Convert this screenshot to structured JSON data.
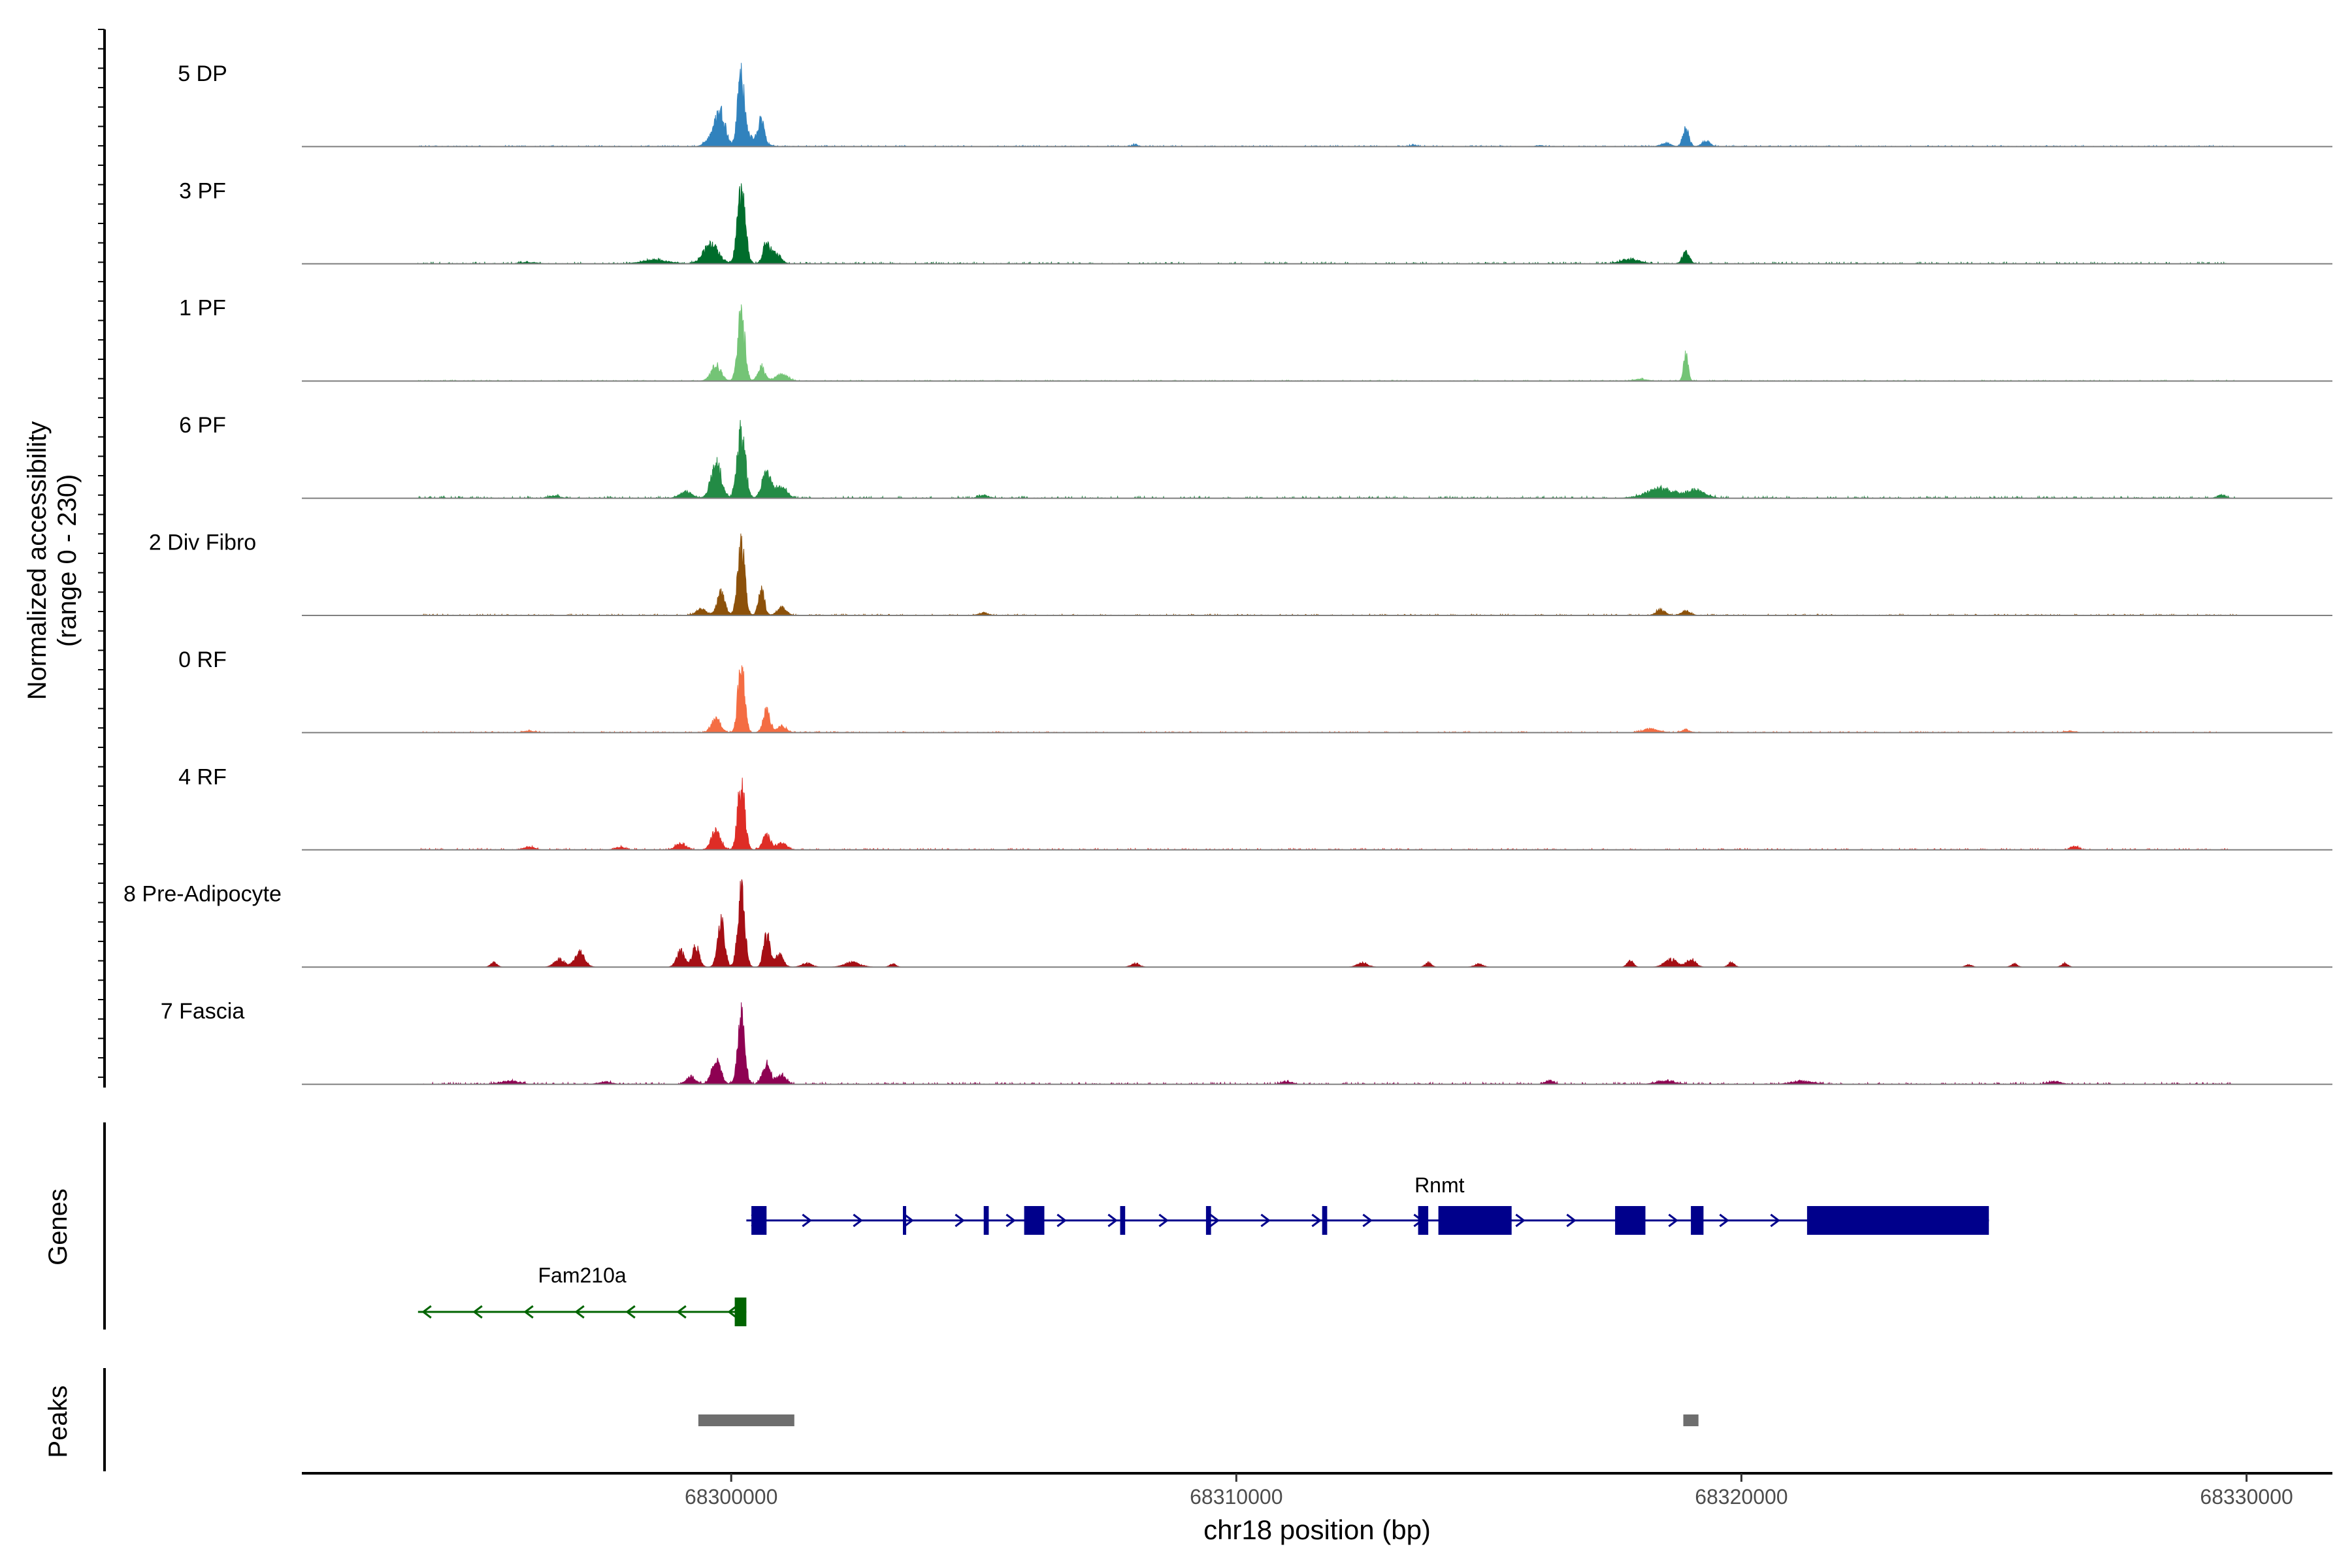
{
  "chart_data": {
    "type": "area",
    "title": "",
    "ylabel_line1": "Normalized accessibility",
    "ylabel_line2": "(range 0 - 230)",
    "y_range": [
      0,
      230
    ],
    "xlabel": "chr18 position (bp)",
    "x_range": [
      68291500,
      68331700
    ],
    "x_ticks": [
      {
        "value": 68300000,
        "label": "68300000"
      },
      {
        "value": 68310000,
        "label": "68310000"
      },
      {
        "value": 68320000,
        "label": "68320000"
      },
      {
        "value": 68330000,
        "label": "68330000"
      }
    ],
    "track_start": 68293800,
    "track_end": 68329800,
    "tracks": [
      {
        "name": "5 DP",
        "color": "#3182bd",
        "noise": 1.5,
        "side": 0.0,
        "peaks": [
          [
            68299800,
            100,
            90
          ],
          [
            68300200,
            230,
            70
          ],
          [
            68300600,
            70,
            50
          ],
          [
            68299650,
            40,
            120
          ],
          [
            68300500,
            30,
            150
          ],
          [
            68318500,
            12,
            90
          ],
          [
            68318900,
            55,
            60
          ],
          [
            68319300,
            18,
            80
          ],
          [
            68308000,
            6,
            60
          ],
          [
            68313500,
            5,
            60
          ],
          [
            68316000,
            4,
            60
          ]
        ]
      },
      {
        "name": "3 PF",
        "color": "#006d2c",
        "noise": 2.0,
        "side": 0.0,
        "peaks": [
          [
            68299600,
            60,
            150
          ],
          [
            68300200,
            220,
            80
          ],
          [
            68300700,
            70,
            70
          ],
          [
            68300900,
            30,
            90
          ],
          [
            68298500,
            12,
            250
          ],
          [
            68317800,
            15,
            180
          ],
          [
            68318900,
            35,
            70
          ],
          [
            68296000,
            4,
            150
          ]
        ]
      },
      {
        "name": "1 PF",
        "color": "#74c476",
        "noise": 1.2,
        "side": 0.0,
        "peaks": [
          [
            68299700,
            50,
            100
          ],
          [
            68300200,
            220,
            70
          ],
          [
            68300600,
            45,
            70
          ],
          [
            68301000,
            20,
            120
          ],
          [
            68318000,
            6,
            120
          ],
          [
            68318900,
            80,
            45
          ]
        ]
      },
      {
        "name": "6 PF",
        "color": "#238b45",
        "noise": 2.3,
        "side": 0.0,
        "peaks": [
          [
            68299100,
            20,
            120
          ],
          [
            68299700,
            110,
            100
          ],
          [
            68300200,
            210,
            80
          ],
          [
            68300700,
            80,
            90
          ],
          [
            68301000,
            40,
            100
          ],
          [
            68318400,
            30,
            280
          ],
          [
            68319100,
            25,
            180
          ],
          [
            68305000,
            9,
            100
          ],
          [
            68296500,
            8,
            100
          ],
          [
            68329500,
            10,
            80
          ]
        ]
      },
      {
        "name": "2 Div Fibro",
        "color": "#8c510a",
        "noise": 1.6,
        "side": 0.0,
        "peaks": [
          [
            68299800,
            70,
            80
          ],
          [
            68300200,
            225,
            70
          ],
          [
            68300600,
            80,
            60
          ],
          [
            68301000,
            25,
            90
          ],
          [
            68299400,
            20,
            100
          ],
          [
            68318400,
            18,
            90
          ],
          [
            68318900,
            14,
            90
          ],
          [
            68305000,
            8,
            90
          ]
        ]
      },
      {
        "name": "0 RF",
        "color": "#f46d43",
        "noise": 1.5,
        "side": 0.0,
        "peaks": [
          [
            68299700,
            45,
            90
          ],
          [
            68300200,
            220,
            65
          ],
          [
            68300700,
            70,
            70
          ],
          [
            68301000,
            20,
            90
          ],
          [
            68318200,
            12,
            150
          ],
          [
            68318900,
            10,
            70
          ],
          [
            68296000,
            5,
            100
          ],
          [
            68326500,
            5,
            100
          ]
        ]
      },
      {
        "name": "4 RF",
        "color": "#de2d26",
        "noise": 1.7,
        "side": 0.0,
        "peaks": [
          [
            68299000,
            20,
            100
          ],
          [
            68299700,
            60,
            90
          ],
          [
            68300200,
            215,
            70
          ],
          [
            68300700,
            45,
            80
          ],
          [
            68301000,
            20,
            100
          ],
          [
            68296000,
            10,
            100
          ],
          [
            68297800,
            8,
            100
          ],
          [
            68326600,
            12,
            70
          ]
        ]
      },
      {
        "name": "8 Pre-Adipocyte",
        "color": "#a50f15",
        "noise": 0.0,
        "side": 0.0,
        "peaks": [
          [
            68299300,
            65,
            70
          ],
          [
            68299800,
            140,
            70
          ],
          [
            68300200,
            230,
            70
          ],
          [
            68300700,
            110,
            60
          ],
          [
            68299000,
            50,
            80
          ],
          [
            68300950,
            40,
            80
          ],
          [
            68297000,
            45,
            100
          ],
          [
            68296600,
            25,
            100
          ],
          [
            68295300,
            15,
            60
          ],
          [
            68301500,
            12,
            100
          ],
          [
            68302400,
            15,
            150
          ],
          [
            68303200,
            10,
            60
          ],
          [
            68308000,
            12,
            80
          ],
          [
            68312500,
            14,
            100
          ],
          [
            68313800,
            14,
            60
          ],
          [
            68314800,
            10,
            80
          ],
          [
            68317800,
            20,
            60
          ],
          [
            68318600,
            25,
            120
          ],
          [
            68319000,
            25,
            90
          ],
          [
            68319800,
            15,
            60
          ],
          [
            68324500,
            8,
            60
          ],
          [
            68325400,
            10,
            60
          ],
          [
            68326400,
            12,
            60
          ]
        ]
      },
      {
        "name": "7 Fascia",
        "color": "#8e0152",
        "noise": 2.2,
        "side": 0.0,
        "peaks": [
          [
            68299200,
            25,
            90
          ],
          [
            68299700,
            75,
            90
          ],
          [
            68300200,
            215,
            70
          ],
          [
            68300700,
            65,
            80
          ],
          [
            68301000,
            30,
            90
          ],
          [
            68295600,
            10,
            180
          ],
          [
            68297500,
            8,
            120
          ],
          [
            68311000,
            9,
            100
          ],
          [
            68316200,
            12,
            80
          ],
          [
            68318500,
            10,
            180
          ],
          [
            68321200,
            10,
            200
          ],
          [
            68326200,
            9,
            120
          ]
        ]
      }
    ],
    "genes_label": "Genes",
    "genes": [
      {
        "name": "Rnmt",
        "strand": "+",
        "color": "#00008b",
        "start": 68300300,
        "end": 68324900,
        "exons": [
          [
            68300400,
            68300700
          ],
          [
            68303400,
            68303450
          ],
          [
            68305000,
            68305100
          ],
          [
            68305800,
            68306200
          ],
          [
            68307700,
            68307800
          ],
          [
            68309400,
            68309500
          ],
          [
            68311700,
            68311800
          ],
          [
            68313600,
            68313800
          ],
          [
            68314000,
            68315450
          ],
          [
            68317500,
            68318100
          ],
          [
            68319000,
            68319250
          ],
          [
            68321300,
            68324900
          ]
        ]
      },
      {
        "name": "Fam210a",
        "strand": "-",
        "color": "#006400",
        "start": 68293800,
        "end": 68300300,
        "exons": [
          [
            68300070,
            68300300
          ]
        ]
      }
    ],
    "peaks_label": "Peaks",
    "peaks": [
      {
        "start": 68299350,
        "end": 68301250,
        "color": "#6e6e6e"
      },
      {
        "start": 68318850,
        "end": 68319150,
        "color": "#6e6e6e"
      }
    ]
  }
}
